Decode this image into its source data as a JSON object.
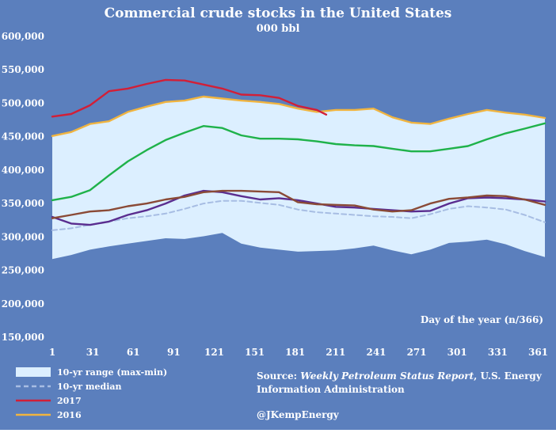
{
  "chart_data": {
    "type": "line",
    "title": "Commercial crude stocks in the United States",
    "subtitle": "000 bbl",
    "xlabel": "Day of the year (n/366)",
    "ylabel": "",
    "xlim": [
      1,
      366
    ],
    "ylim": [
      150000,
      600000
    ],
    "xticks": [
      1,
      31,
      61,
      91,
      121,
      151,
      181,
      211,
      241,
      271,
      301,
      331,
      361
    ],
    "yticks": [
      150000,
      200000,
      250000,
      300000,
      350000,
      400000,
      450000,
      500000,
      550000,
      600000
    ],
    "ytick_labels": [
      "150,000",
      "200,000",
      "250,000",
      "300,000",
      "350,000",
      "400,000",
      "450,000",
      "500,000",
      "550,000",
      "600,000"
    ],
    "grid": false,
    "legend_position": "bottom-left",
    "range": {
      "name": "10-yr range (max-min)",
      "color": "#dcefff",
      "x": [
        1,
        15,
        29,
        43,
        57,
        71,
        85,
        99,
        113,
        127,
        141,
        155,
        169,
        183,
        197,
        211,
        225,
        239,
        253,
        267,
        281,
        295,
        309,
        323,
        337,
        351,
        366
      ],
      "max": [
        452000,
        458000,
        470000,
        474000,
        488000,
        496000,
        503000,
        505000,
        511000,
        508000,
        505000,
        503000,
        500000,
        493000,
        487000,
        491000,
        490000,
        493000,
        480000,
        472000,
        470000,
        478000,
        485000,
        491000,
        487000,
        484000,
        478000
      ],
      "min": [
        267000,
        273000,
        281000,
        286000,
        290000,
        294000,
        298000,
        297000,
        301000,
        306000,
        290000,
        284000,
        281000,
        278000,
        279000,
        280000,
        283000,
        287000,
        280000,
        274000,
        281000,
        291000,
        293000,
        296000,
        289000,
        279000,
        270000
      ]
    },
    "series": [
      {
        "name": "10-yr median",
        "color": "#a7bde3",
        "dashed": true,
        "x": [
          1,
          15,
          29,
          43,
          57,
          71,
          85,
          99,
          113,
          127,
          141,
          155,
          169,
          183,
          197,
          211,
          225,
          239,
          253,
          267,
          281,
          295,
          309,
          323,
          337,
          351,
          366
        ],
        "values": [
          310000,
          313000,
          318000,
          323000,
          328000,
          331000,
          335000,
          342000,
          350000,
          354000,
          354000,
          351000,
          348000,
          341000,
          337000,
          335000,
          333000,
          331000,
          330000,
          328000,
          334000,
          342000,
          346000,
          344000,
          341000,
          333000,
          322000
        ]
      },
      {
        "name": "",
        "color": "#1fb24a",
        "dashed": false,
        "x": [
          1,
          15,
          29,
          43,
          57,
          71,
          85,
          99,
          113,
          127,
          141,
          155,
          169,
          183,
          197,
          211,
          225,
          239,
          253,
          267,
          281,
          295,
          309,
          323,
          337,
          351,
          366
        ],
        "values": [
          355000,
          360000,
          370000,
          392000,
          413000,
          430000,
          445000,
          456000,
          466000,
          463000,
          452000,
          447000,
          447000,
          446000,
          443000,
          439000,
          437000,
          436000,
          432000,
          428000,
          428000,
          432000,
          436000,
          446000,
          455000,
          462000,
          470000
        ]
      },
      {
        "name": "",
        "color": "#5a2d8f",
        "dashed": false,
        "x": [
          1,
          15,
          29,
          43,
          57,
          71,
          85,
          99,
          113,
          127,
          141,
          155,
          169,
          183,
          197,
          211,
          225,
          239,
          253,
          267,
          281,
          295,
          309,
          323,
          337,
          351,
          366
        ],
        "values": [
          330000,
          320000,
          318000,
          323000,
          333000,
          340000,
          350000,
          362000,
          369000,
          367000,
          361000,
          356000,
          358000,
          355000,
          350000,
          345000,
          344000,
          342000,
          340000,
          338000,
          339000,
          350000,
          358000,
          359000,
          358000,
          356000,
          353000
        ]
      },
      {
        "name": "",
        "color": "#8a4a36",
        "dashed": false,
        "x": [
          1,
          15,
          29,
          43,
          57,
          71,
          85,
          99,
          113,
          127,
          141,
          155,
          169,
          183,
          197,
          211,
          225,
          239,
          253,
          267,
          281,
          295,
          309,
          323,
          337,
          351,
          366
        ],
        "values": [
          328000,
          333000,
          338000,
          340000,
          346000,
          350000,
          356000,
          360000,
          367000,
          369000,
          369000,
          368000,
          367000,
          352000,
          349000,
          348000,
          347000,
          341000,
          338000,
          340000,
          350000,
          357000,
          359000,
          362000,
          361000,
          356000,
          348000
        ]
      },
      {
        "name": "2016",
        "color": "#f0b440",
        "dashed": false,
        "x": [
          1,
          15,
          29,
          43,
          57,
          71,
          85,
          99,
          113,
          127,
          141,
          155,
          169,
          183,
          197,
          211,
          225,
          239,
          253,
          267,
          281,
          295,
          309,
          323,
          337,
          351,
          366
        ],
        "values": [
          451000,
          457000,
          469000,
          473000,
          487000,
          495000,
          502000,
          504000,
          510000,
          507000,
          504000,
          502000,
          499000,
          492000,
          487000,
          490000,
          490000,
          492000,
          479000,
          471000,
          469000,
          477000,
          484000,
          490000,
          486000,
          483000,
          478000
        ]
      },
      {
        "name": "2017",
        "color": "#d21f37",
        "dashed": false,
        "x": [
          1,
          15,
          29,
          43,
          57,
          71,
          85,
          99,
          113,
          127,
          141,
          155,
          169,
          183,
          197,
          204
        ],
        "values": [
          480000,
          484000,
          497000,
          518000,
          522000,
          529000,
          535000,
          534000,
          528000,
          522000,
          513000,
          512000,
          508000,
          496000,
          490000,
          483000
        ]
      }
    ],
    "legend": [
      {
        "label": "10-yr range (max-min)",
        "kind": "patch",
        "color": "#dcefff"
      },
      {
        "label": "10-yr median",
        "kind": "dashed",
        "color": "#a7bde3"
      },
      {
        "label": "2017",
        "kind": "line",
        "color": "#d21f37"
      },
      {
        "label": "2016",
        "kind": "line",
        "color": "#f0b440"
      }
    ]
  },
  "notes": {
    "source_prefix": "Source: ",
    "source_italic": "Weekly Petroleum Status Report",
    "source_suffix": ", U.S. Energy",
    "source_line2": "Information Administration",
    "author": "@JKempEnergy"
  }
}
